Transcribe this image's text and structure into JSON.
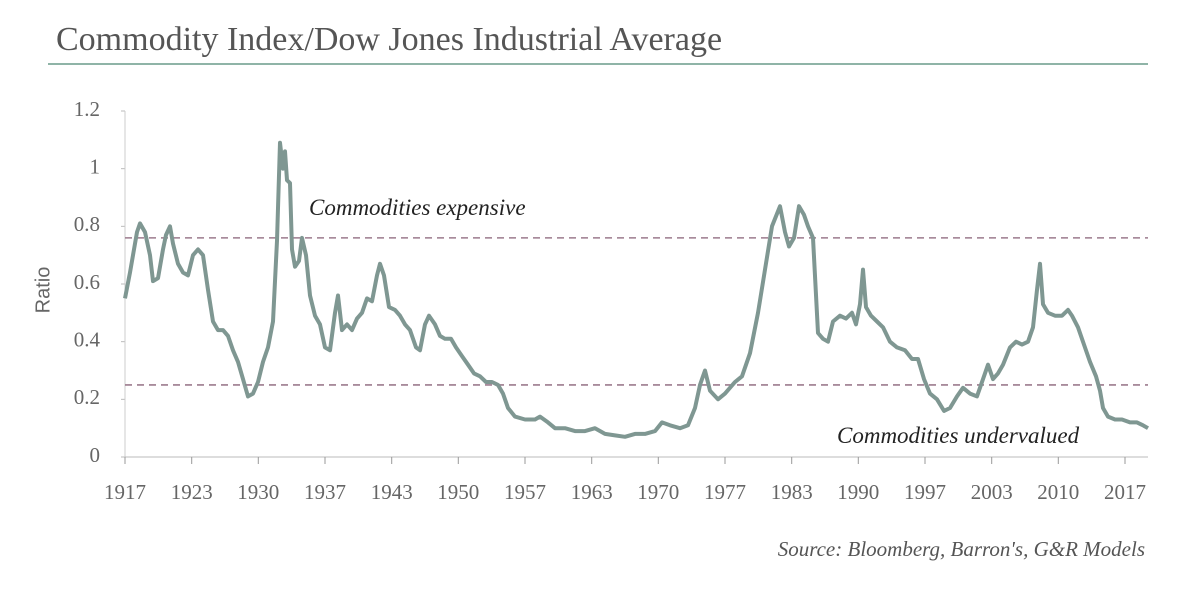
{
  "chart_data": {
    "type": "line",
    "title": "Commodity Index/Dow Jones Industrial Average",
    "y_label": "Ratio",
    "source": "Source: Bloomberg, Barron's, G&R Models",
    "annotations": [
      {
        "text": "Commodities expensive",
        "value": 0.76
      },
      {
        "text": "Commodities undervalued",
        "value": 0.25
      }
    ],
    "reference_line_color": "#9c7b8d",
    "xlim": [
      1917,
      2019.3
    ],
    "xticks": [
      1917,
      {
        "value": 1923.67,
        "label": "1923"
      },
      {
        "value": 1930.33,
        "label": "1930"
      },
      1937,
      {
        "value": 1943.67,
        "label": "1943"
      },
      {
        "value": 1950.33,
        "label": "1950"
      },
      1957,
      {
        "value": 1963.67,
        "label": "1963"
      },
      {
        "value": 1970.33,
        "label": "1970"
      },
      1977,
      {
        "value": 1983.67,
        "label": "1983"
      },
      {
        "value": 1990.33,
        "label": "1990"
      },
      1997,
      {
        "value": 2003.67,
        "label": "2003"
      },
      {
        "value": 2010.33,
        "label": "2010"
      },
      2017
    ],
    "ylim": [
      0,
      1.2
    ],
    "yticks": [
      0,
      0.2,
      0.4,
      0.6,
      0.8,
      1,
      1.2
    ],
    "grid": false,
    "x": [
      1917.0,
      1917.5,
      1918.2,
      1918.5,
      1919.0,
      1919.5,
      1919.8,
      1920.3,
      1920.8,
      1921.1,
      1921.5,
      1921.8,
      1922.3,
      1922.8,
      1923.3,
      1923.8,
      1924.3,
      1924.8,
      1925.3,
      1925.8,
      1926.3,
      1926.8,
      1927.3,
      1927.8,
      1928.3,
      1928.8,
      1929.3,
      1929.8,
      1930.3,
      1930.8,
      1931.3,
      1931.8,
      1932.2,
      1932.5,
      1932.8,
      1933.0,
      1933.2,
      1933.5,
      1933.7,
      1934.0,
      1934.4,
      1934.7,
      1935.1,
      1935.5,
      1936.0,
      1936.5,
      1937.0,
      1937.5,
      1938.0,
      1938.3,
      1938.7,
      1939.2,
      1939.7,
      1940.2,
      1940.7,
      1941.2,
      1941.7,
      1942.2,
      1942.5,
      1942.9,
      1943.4,
      1944.0,
      1944.5,
      1945.0,
      1945.5,
      1946.1,
      1946.5,
      1947.0,
      1947.4,
      1948.0,
      1948.5,
      1949.0,
      1949.6,
      1950.1,
      1950.7,
      1951.3,
      1951.9,
      1952.5,
      1953.1,
      1953.7,
      1954.3,
      1954.8,
      1955.3,
      1956.0,
      1957.0,
      1958.0,
      1958.5,
      1959.3,
      1960.0,
      1961.0,
      1962.0,
      1963.0,
      1964.0,
      1965.0,
      1966.0,
      1967.0,
      1968.0,
      1969.0,
      1970.0,
      1970.7,
      1971.5,
      1972.5,
      1973.3,
      1974.0,
      1974.5,
      1975.0,
      1975.5,
      1976.3,
      1977.0,
      1978.0,
      1978.7,
      1979.5,
      1980.3,
      1981.0,
      1981.7,
      1982.5,
      1983.0,
      1983.4,
      1983.9,
      1984.4,
      1984.9,
      1985.3,
      1985.8,
      1986.3,
      1986.8,
      1987.3,
      1987.8,
      1988.5,
      1989.1,
      1989.7,
      1990.1,
      1990.5,
      1990.8,
      1991.1,
      1991.6,
      1992.2,
      1992.8,
      1993.5,
      1994.2,
      1995.0,
      1995.7,
      1996.3,
      1996.9,
      1997.5,
      1998.2,
      1998.9,
      1999.5,
      2000.2,
      2000.8,
      2001.5,
      2002.2,
      2002.8,
      2003.3,
      2003.8,
      2004.3,
      2004.8,
      2005.5,
      2006.1,
      2006.7,
      2007.3,
      2007.8,
      2008.2,
      2008.5,
      2008.8,
      2009.3,
      2010.0,
      2010.7,
      2011.3,
      2011.7,
      2012.3,
      2012.9,
      2013.5,
      2014.1,
      2014.5,
      2014.8,
      2015.3,
      2016.0,
      2016.7,
      2017.5,
      2018.2,
      2018.8,
      2019.3
    ],
    "series": [
      {
        "name": "Commodity Index/DJIA",
        "color": "#7f9792",
        "values": [
          0.55,
          0.64,
          0.78,
          0.81,
          0.78,
          0.7,
          0.61,
          0.62,
          0.72,
          0.77,
          0.8,
          0.74,
          0.67,
          0.64,
          0.63,
          0.7,
          0.72,
          0.7,
          0.58,
          0.47,
          0.44,
          0.44,
          0.42,
          0.37,
          0.33,
          0.27,
          0.21,
          0.22,
          0.26,
          0.33,
          0.38,
          0.47,
          0.75,
          1.09,
          1.0,
          1.06,
          0.96,
          0.95,
          0.72,
          0.66,
          0.68,
          0.76,
          0.7,
          0.56,
          0.49,
          0.46,
          0.38,
          0.37,
          0.5,
          0.56,
          0.44,
          0.46,
          0.44,
          0.48,
          0.5,
          0.55,
          0.54,
          0.63,
          0.67,
          0.63,
          0.52,
          0.51,
          0.49,
          0.46,
          0.44,
          0.38,
          0.37,
          0.46,
          0.49,
          0.46,
          0.42,
          0.41,
          0.41,
          0.38,
          0.35,
          0.32,
          0.29,
          0.28,
          0.26,
          0.26,
          0.25,
          0.22,
          0.17,
          0.14,
          0.13,
          0.13,
          0.14,
          0.12,
          0.1,
          0.1,
          0.09,
          0.09,
          0.1,
          0.08,
          0.075,
          0.07,
          0.08,
          0.08,
          0.09,
          0.12,
          0.11,
          0.1,
          0.11,
          0.17,
          0.25,
          0.3,
          0.23,
          0.2,
          0.22,
          0.26,
          0.28,
          0.36,
          0.5,
          0.65,
          0.8,
          0.87,
          0.78,
          0.73,
          0.76,
          0.87,
          0.84,
          0.8,
          0.76,
          0.43,
          0.41,
          0.4,
          0.47,
          0.49,
          0.48,
          0.5,
          0.46,
          0.53,
          0.65,
          0.52,
          0.49,
          0.47,
          0.45,
          0.4,
          0.38,
          0.37,
          0.34,
          0.34,
          0.27,
          0.22,
          0.2,
          0.16,
          0.17,
          0.21,
          0.24,
          0.22,
          0.21,
          0.27,
          0.32,
          0.27,
          0.29,
          0.32,
          0.38,
          0.4,
          0.39,
          0.4,
          0.45,
          0.58,
          0.67,
          0.53,
          0.5,
          0.49,
          0.49,
          0.51,
          0.49,
          0.45,
          0.39,
          0.33,
          0.28,
          0.23,
          0.17,
          0.14,
          0.13,
          0.13,
          0.12,
          0.12,
          0.11,
          0.1
        ]
      }
    ]
  }
}
